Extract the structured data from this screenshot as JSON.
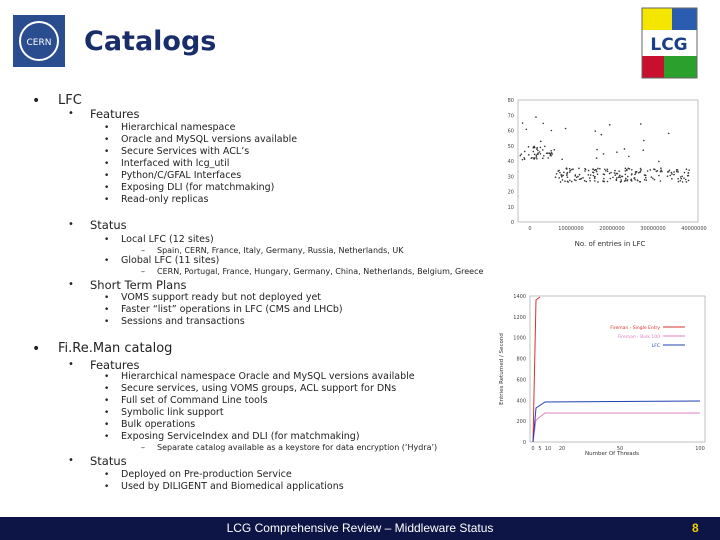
{
  "header": {
    "title": "Catalogs",
    "logo_left": "CERN",
    "logo_right": "LCG"
  },
  "sections": [
    {
      "title": "LFC",
      "groups": [
        {
          "title": "Features",
          "items": [
            {
              "text": "Hierarchical namespace"
            },
            {
              "text": "Oracle and MySQL versions available"
            },
            {
              "text": "Secure Services with ACL’s"
            },
            {
              "text": "Interfaced with lcg_util"
            },
            {
              "text": "Python/C/GFAL Interfaces"
            },
            {
              "text": "Exposing DLI (for matchmaking)"
            },
            {
              "text": "Read-only replicas"
            }
          ]
        },
        {
          "title": "Status",
          "items": [
            {
              "text": "Local LFC (12 sites)",
              "notes": [
                "Spain, CERN, France, Italy, Germany, Russia, Netherlands, UK"
              ]
            },
            {
              "text": "Global LFC (11 sites)",
              "notes": [
                "CERN, Portugal, France, Hungary, Germany, China, Netherlands, Belgium, Greece"
              ]
            }
          ]
        },
        {
          "title": "Short Term Plans",
          "items": [
            {
              "text": "VOMS support ready but not deployed yet"
            },
            {
              "text": "Faster “list” operations in LFC (CMS and LHCb)"
            },
            {
              "text": "Sessions and transactions"
            }
          ]
        }
      ]
    },
    {
      "title": "Fi.Re.Man catalog",
      "groups": [
        {
          "title": "Features",
          "items": [
            {
              "text": "Hierarchical namespace Oracle and MySQL versions available"
            },
            {
              "text": "Secure services, using VOMS groups, ACL support for DNs"
            },
            {
              "text": "Full set of Command Line tools"
            },
            {
              "text": "Symbolic link support"
            },
            {
              "text": "Bulk operations"
            },
            {
              "text": "Exposing ServiceIndex and DLI (for matchmaking)",
              "notes": [
                "Separate catalog available as a keystore for data encryption (‘Hydra’)"
              ]
            }
          ]
        },
        {
          "title": "Status",
          "items": [
            {
              "text": "Deployed on Pre-production Service"
            },
            {
              "text": "Used by DILIGENT and Biomedical applications"
            }
          ]
        }
      ]
    }
  ],
  "figures": [
    {
      "xlabel": "No. of entries in LFC",
      "yticks": [
        "0",
        "10",
        "20",
        "30",
        "40",
        "50",
        "60",
        "70",
        "80"
      ],
      "xticks": [
        "0",
        "10000000",
        "20000000",
        "30000000",
        "40000000"
      ]
    },
    {
      "xlabel": "Number Of Threads",
      "ylabel": "Entries Returned / Second",
      "yticks": [
        "0",
        "200",
        "400",
        "600",
        "800",
        "1000",
        "1200",
        "1400"
      ],
      "xticks": [
        "0",
        "5",
        "10",
        "20",
        "50",
        "100"
      ],
      "legend": [
        "Fireman - Single Entry",
        "Fireman - Bulk 100",
        "LFC"
      ]
    }
  ],
  "footer": {
    "text": "LCG Comprehensive Review – Middleware Status",
    "page": "8"
  }
}
